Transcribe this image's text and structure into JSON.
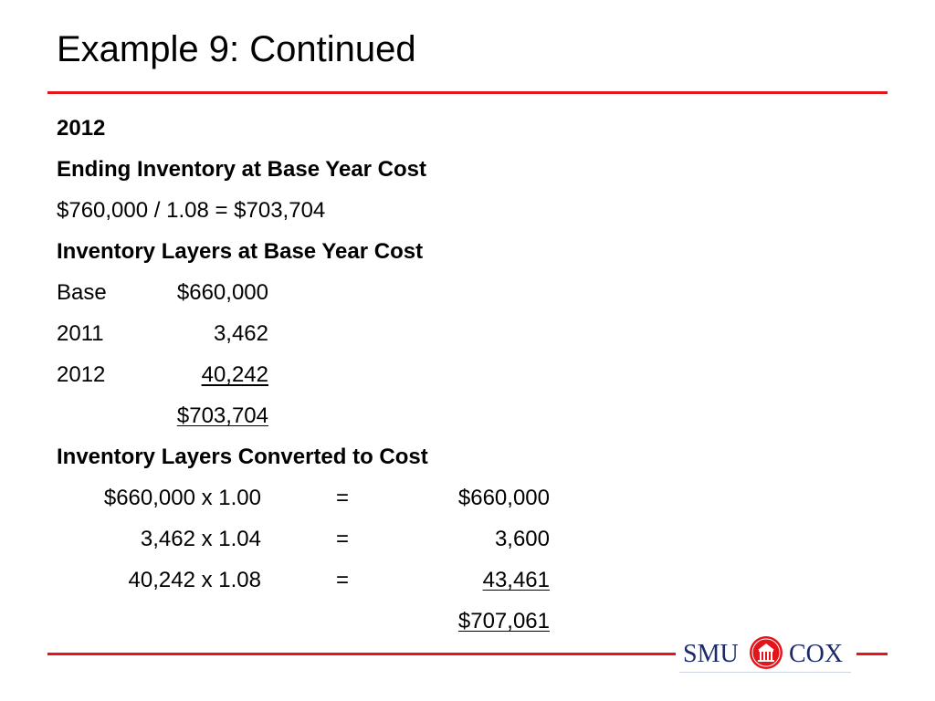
{
  "slide": {
    "title": "Example 9: Continued",
    "year": "2012",
    "ending_heading": "Ending Inventory at Base Year Cost",
    "ending_calc": "$760,000 / 1.08 = $703,704",
    "layers_heading": "Inventory Layers at Base Year Cost",
    "layers": [
      {
        "label": "Base",
        "amount": "$660,000"
      },
      {
        "label": "2011",
        "amount": "3,462"
      },
      {
        "label": "2012",
        "amount": "40,242"
      }
    ],
    "layers_total": "$703,704",
    "converted_heading": "Inventory Layers Converted to Cost",
    "conversions": [
      {
        "calc": "$660,000 x 1.00",
        "eq": "=",
        "result": "$660,000"
      },
      {
        "calc": "3,462 x 1.04",
        "eq": "=",
        "result": "3,600"
      },
      {
        "calc": "40,242 x 1.08",
        "eq": "=",
        "result": "43,461"
      }
    ],
    "converted_total": "$707,061"
  },
  "logo": {
    "left_text": "SMU",
    "right_text": "COX",
    "icon": "building-seal-icon",
    "brand_red": "#e3151a",
    "brand_navy": "#1b2a6b"
  }
}
